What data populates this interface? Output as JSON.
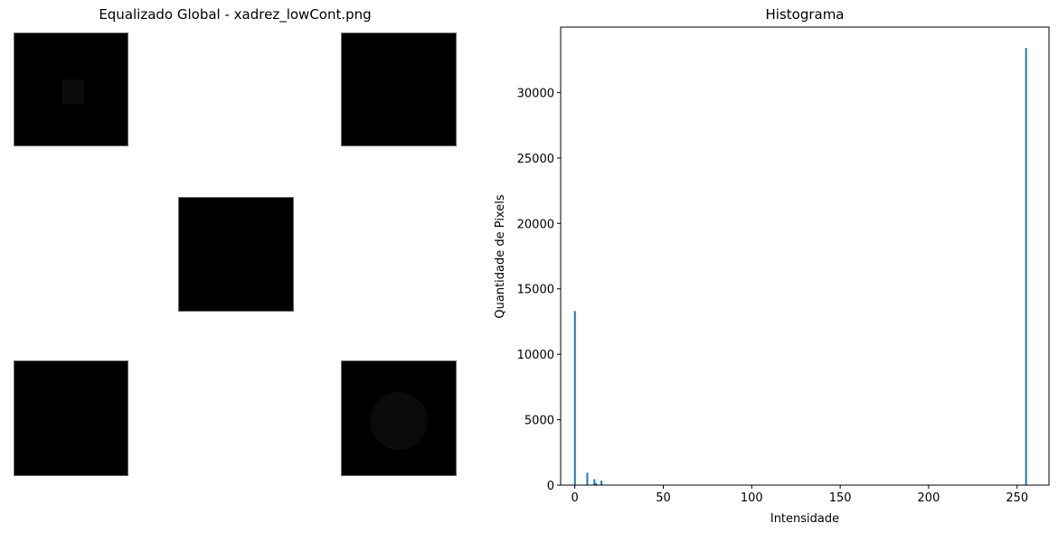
{
  "image_panel": {
    "title": "Equalizado Global - xadrez_lowCont.png"
  },
  "chart_data": {
    "type": "bar",
    "title": "Histograma",
    "xlabel": "Intensidade",
    "ylabel": "Quantidade de Pixels",
    "xlim": [
      -8,
      268
    ],
    "ylim": [
      0,
      35000
    ],
    "xticks": [
      0,
      50,
      100,
      150,
      200,
      250
    ],
    "yticks": [
      0,
      5000,
      10000,
      15000,
      20000,
      25000,
      30000
    ],
    "bar_color": "#1f77b4",
    "bins": [
      {
        "x": 0,
        "value": 13300
      },
      {
        "x": 7,
        "value": 950
      },
      {
        "x": 11,
        "value": 450
      },
      {
        "x": 12,
        "value": 150
      },
      {
        "x": 15,
        "value": 350
      },
      {
        "x": 255,
        "value": 33400
      }
    ]
  }
}
